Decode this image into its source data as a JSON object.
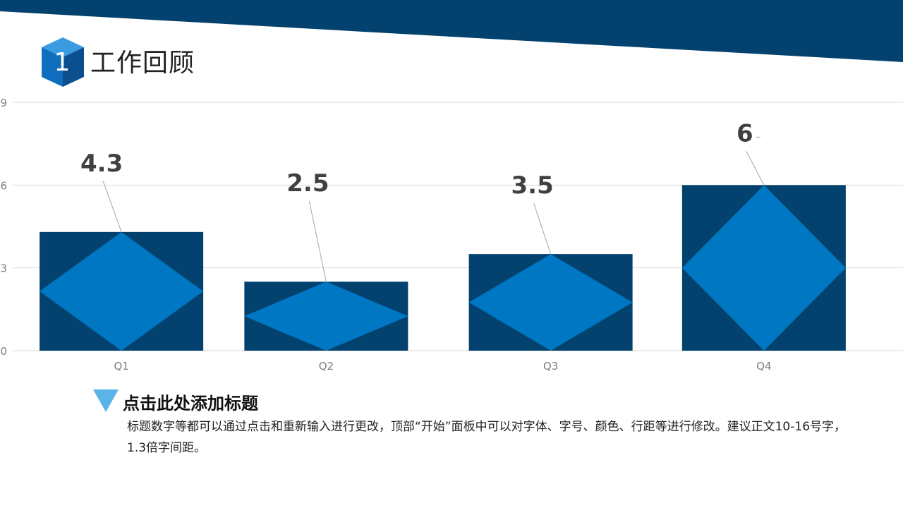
{
  "header": {
    "section_number": "1",
    "title": "工作回顾"
  },
  "colors": {
    "band": "#03426E",
    "bar": "#03426E",
    "diamond": "#0077C2",
    "icon_front": "#0F6FBE",
    "icon_top": "#3A9BE0",
    "icon_side": "#0B4F8F",
    "arrow": "#5AB4E8",
    "grid": "#D9D9D9",
    "leader": "#A6A6A6",
    "value_label": "#404040",
    "tick": "#7F7F7F"
  },
  "chart_data": {
    "type": "bar",
    "categories": [
      "Q1",
      "Q2",
      "Q3",
      "Q4"
    ],
    "values": [
      4.3,
      2.5,
      3.5,
      6
    ],
    "value_labels": [
      "4.3",
      "2.5",
      "3.5",
      "6"
    ],
    "yticks": [
      "0",
      "3",
      "6",
      "9"
    ],
    "ylim": [
      0,
      9
    ],
    "grid": true,
    "title": "",
    "xlabel": "",
    "ylabel": ""
  },
  "content": {
    "subtitle": "点击此处添加标题",
    "body": "标题数字等都可以通过点击和重新输入进行更改，顶部“开始”面板中可以对字体、字号、颜色、行距等进行修改。建议正文10-16号字，1.3倍字间距。"
  }
}
